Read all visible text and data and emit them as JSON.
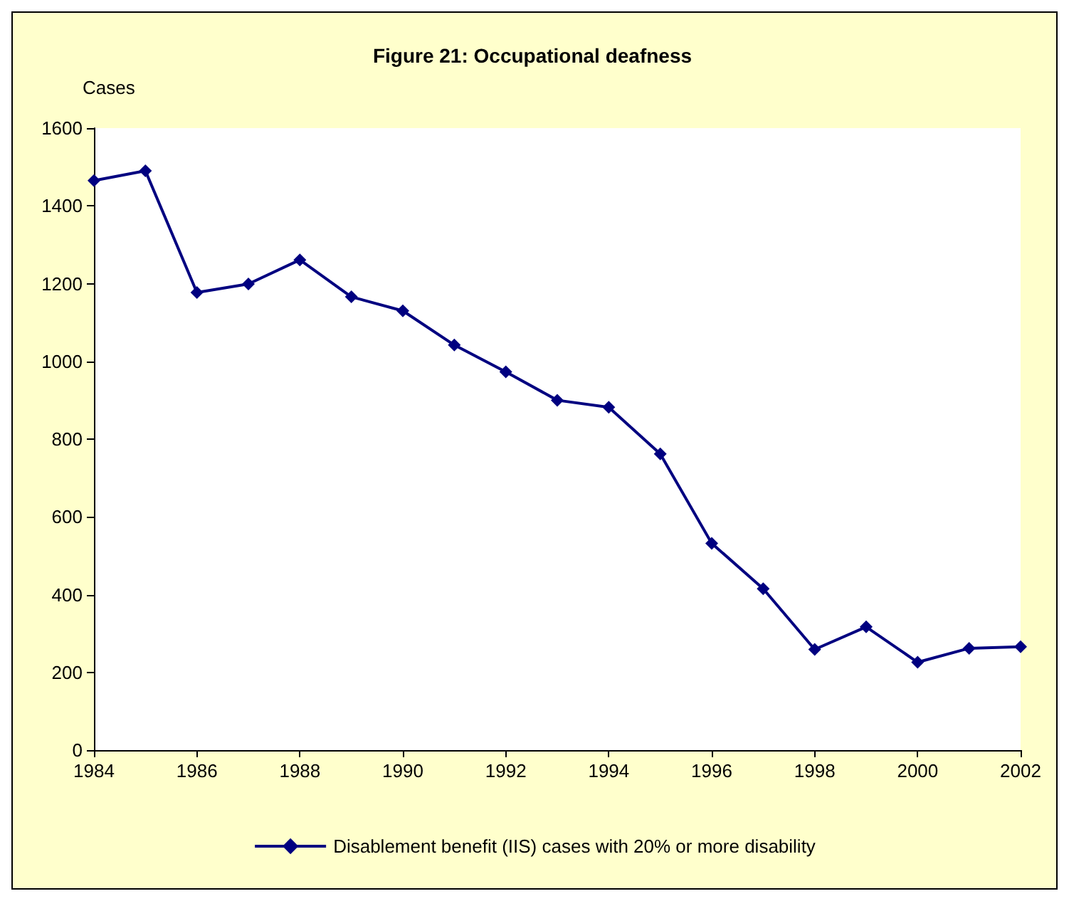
{
  "chart_data": {
    "type": "line",
    "title": "Figure 21: Occupational deafness",
    "ylabel": "Cases",
    "x": [
      1984,
      1985,
      1986,
      1987,
      1988,
      1989,
      1990,
      1991,
      1992,
      1993,
      1994,
      1995,
      1996,
      1997,
      1998,
      1999,
      2000,
      2001,
      2002
    ],
    "series": [
      {
        "name": "Disablement benefit (IIS) cases with 20% or more disability",
        "color": "#000080",
        "values": [
          1465,
          1490,
          1177,
          1199,
          1261,
          1166,
          1130,
          1042,
          973,
          900,
          882,
          762,
          532,
          415,
          259,
          317,
          226,
          262,
          266
        ]
      }
    ],
    "xlim": [
      1984,
      2002
    ],
    "xticks": [
      1984,
      1986,
      1988,
      1990,
      1992,
      1994,
      1996,
      1998,
      2000,
      2002
    ],
    "ylim": [
      0,
      1600
    ],
    "yticks": [
      0,
      200,
      400,
      600,
      800,
      1000,
      1200,
      1400,
      1600
    ],
    "grid": false,
    "legend": "bottom",
    "marker": "diamond",
    "line_style": "solid"
  }
}
